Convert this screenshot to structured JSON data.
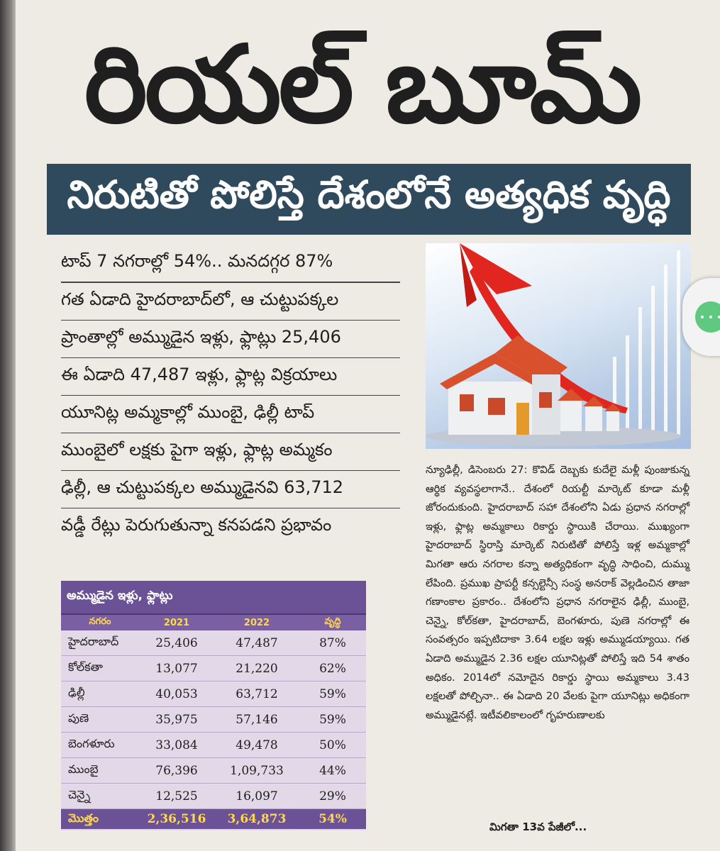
{
  "headline": "రియల్ బూమ్",
  "subheadline": "నిరుటితో పోలిస్తే దేశంలోనే అత్యధిక వృద్ధి",
  "bullets": [
    "టాప్ 7 నగరాల్లో 54%.. మనదగ్గర 87%",
    "గత ఏడాది హైదరాబాద్‌లో, ఆ చుట్టుపక్కల",
    "ప్రాంతాల్లో అమ్ముడైన ఇళ్లు, ఫ్లాట్లు 25,406",
    "ఈ ఏడాది 47,487 ఇళ్లు, ఫ్లాట్ల విక్రయాలు",
    "యూనిట్ల అమ్మకాల్లో ముంబై, ఢిల్లీ టాప్",
    "ముంబైలో లక్షకు పైగా ఇళ్లు, ఫ్లాట్ల అమ్మకం",
    "ఢిల్లీ, ఆ చుట్టుపక్కల అమ్ముడైనవి 63,712",
    "వడ్డీ రేట్లు పెరుగుతున్నా కనపడని ప్రభావం"
  ],
  "body_text": "న్యూఢిల్లీ, డిసెంబరు 27: కొవిడ్ దెబ్బకు కుదేలై మళ్లీ పుంజుకున్న ఆర్థిక వ్యవస్థలాగానే.. దేశంలో రియల్టీ మార్కెట్ కూడా మళ్లీ జోరందుకుంది. హైదరాబాద్ సహా దేశంలోని ఏడు ప్రధాన నగరాల్లో ఇళ్లు, ఫ్లాట్ల అమ్మకాలు రికార్డు స్థాయికి చేరాయి. ముఖ్యంగా హైదరాబాద్ స్థిరాస్తి మార్కెట్ నిరుటితో పోలిస్తే ఇళ్ల అమ్మకాల్లో మిగతా ఆరు నగరాల కన్నా అత్యధికంగా వృద్ధి సాధించి, దుమ్ము లేపింది. ప్రముఖ ప్రాపర్టీ కన్సల్టెన్సీ సంస్థ అనరాక్ వెల్లడించిన తాజా గణాంకాల ప్రకారం.. దేశంలోని ప్రధాన నగరాలైన ఢిల్లీ, ముంబై, చెన్నై, కోల్‌కతా, హైదరాబాద్, బెంగళూరు, పుణె నగరాల్లో ఈ సంవత్సరం ఇప్పటిదాకా 3.64 లక్షల ఇళ్లు అమ్ముడయ్యాయి. గత ఏడాది అమ్ముడైన 2.36 లక్షల యూనిట్లతో పోలిస్తే ఇది 54 శాతం అధికం. 2014లో నమోదైన రికార్డు స్థాయి అమ్మకాలు 3.43 లక్షలతో పోల్చినా.. ఈ ఏడాది 20 వేలకు పైగా యూనిట్లు అధికంగా అమ్ముడైనట్లే. ఇటీవలికాలంలో గృహరుణాలకు",
  "continued": "మిగతా 13వ పేజీలో...",
  "table": {
    "title": "అమ్ముడైన ఇళ్లు, ఫ్లాట్లు",
    "headers": [
      "నగరం",
      "2021",
      "2022",
      "వృద్ధి"
    ],
    "rows": [
      [
        "హైదరాబాద్",
        "25,406",
        "47,487",
        "87%"
      ],
      [
        "కోల్‌కతా",
        "13,077",
        "21,220",
        "62%"
      ],
      [
        "ఢిల్లీ",
        "40,053",
        "63,712",
        "59%"
      ],
      [
        "పుణె",
        "35,975",
        "57,146",
        "59%"
      ],
      [
        "బెంగళూరు",
        "33,084",
        "49,478",
        "50%"
      ],
      [
        "ముంబై",
        "76,396",
        "1,09,733",
        "44%"
      ],
      [
        "చెన్నై",
        "12,525",
        "16,097",
        "29%"
      ]
    ],
    "total": [
      "మొత్తం",
      "2,36,516",
      "3,64,873",
      "54%"
    ]
  },
  "colors": {
    "subhead_bg": "#2e4a5c",
    "table_header": "#6b5196",
    "table_accent_text": "#ffd94a",
    "arrow": "#e0261f",
    "roof": "#d9512c"
  },
  "icons": {
    "side_button": "more-options-icon"
  }
}
